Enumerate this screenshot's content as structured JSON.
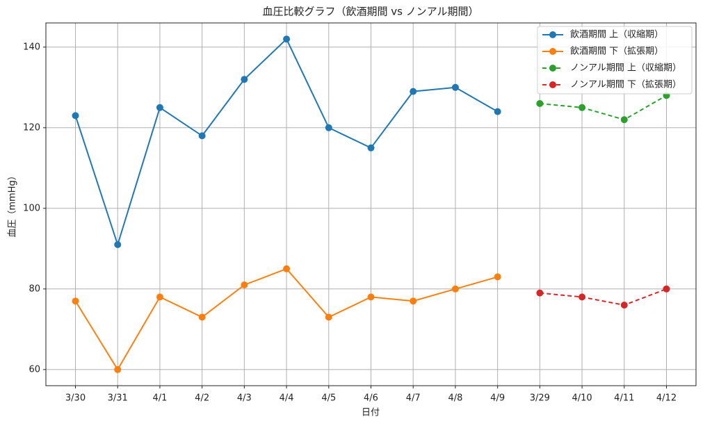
{
  "chart_data": {
    "type": "line",
    "title": "血圧比較グラフ（飲酒期間 vs ノンアル期間）",
    "x_label": "日付",
    "y_label": "血圧（mmHg）",
    "categories": [
      "3/30",
      "3/31",
      "4/1",
      "4/2",
      "4/3",
      "4/4",
      "4/5",
      "4/6",
      "4/7",
      "4/8",
      "4/9",
      "3/29",
      "4/10",
      "4/11",
      "4/12"
    ],
    "series": [
      {
        "name": "飲酒期間 上（収縮期）",
        "color": "#1f77b4",
        "linestyle": "solid",
        "values": [
          123,
          91,
          125,
          118,
          132,
          142,
          120,
          115,
          129,
          130,
          124,
          null,
          null,
          null,
          null
        ]
      },
      {
        "name": "飲酒期間 下（拡張期）",
        "color": "#ff7f0e",
        "linestyle": "solid",
        "values": [
          77,
          60,
          78,
          73,
          81,
          85,
          73,
          78,
          77,
          80,
          83,
          null,
          null,
          null,
          null
        ]
      },
      {
        "name": "ノンアル期間 上（収縮期）",
        "color": "#2ca02c",
        "linestyle": "dashed",
        "values": [
          null,
          null,
          null,
          null,
          null,
          null,
          null,
          null,
          null,
          null,
          null,
          126,
          125,
          122,
          128
        ]
      },
      {
        "name": "ノンアル期間 下（拡張期）",
        "color": "#d62728",
        "linestyle": "dashed",
        "values": [
          null,
          null,
          null,
          null,
          null,
          null,
          null,
          null,
          null,
          null,
          null,
          79,
          78,
          76,
          80
        ]
      }
    ],
    "ylim": [
      56,
      146
    ],
    "yticks": [
      60,
      80,
      100,
      120,
      140
    ],
    "grid": true,
    "legend": "upper right"
  }
}
